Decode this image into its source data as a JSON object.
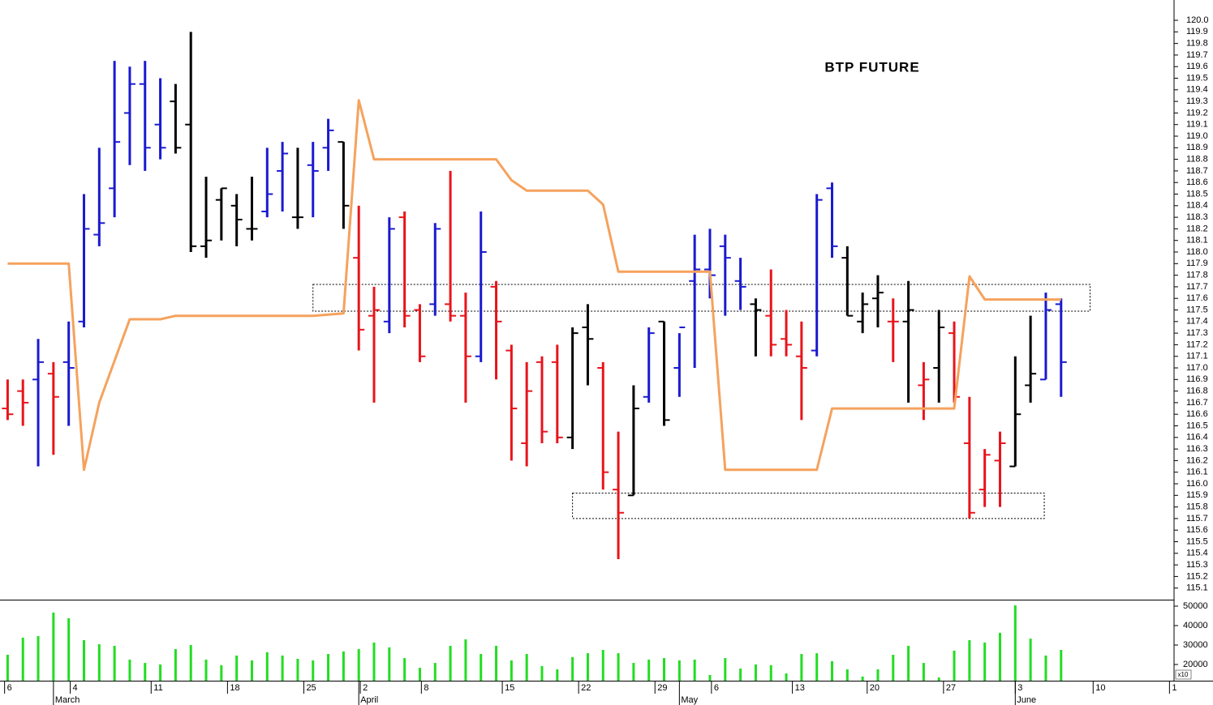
{
  "chart_data": [
    {
      "type": "ohlc",
      "title": "BTP FUTURE",
      "open": [
        116.65,
        116.8,
        116.9,
        116.95,
        117.05,
        117.4,
        118.15,
        118.55,
        119.2,
        119.45,
        119.1,
        119.3,
        119.1,
        118.05,
        118.45,
        118.4,
        118.2,
        118.35,
        118.7,
        118.3,
        118.75,
        118.9,
        118.95,
        117.95,
        117.45,
        117.4,
        118.3,
        117.5,
        117.55,
        117.55,
        117.45,
        117.1,
        117.7,
        117.15,
        116.35,
        117.05,
        117.05,
        116.4,
        117.35,
        117.0,
        115.95,
        115.9,
        116.75,
        117.4,
        117.0,
        117.75,
        117.85,
        118.05,
        117.75,
        117.55,
        117.45,
        117.25,
        117.1,
        117.15,
        118.55,
        117.95,
        117.4,
        117.6,
        117.4,
        117.4,
        116.85,
        117.0,
        117.3,
        116.35,
        115.95,
        116.2,
        116.15,
        116.85,
        116.9,
        117.55
      ],
      "high": [
        116.9,
        116.9,
        117.25,
        117.05,
        117.4,
        118.5,
        118.9,
        119.65,
        119.6,
        119.65,
        119.5,
        119.45,
        119.9,
        118.65,
        118.55,
        118.5,
        118.65,
        118.9,
        118.95,
        118.9,
        118.95,
        119.15,
        118.95,
        118.4,
        117.7,
        118.3,
        118.35,
        117.55,
        118.25,
        118.7,
        117.65,
        118.35,
        117.75,
        117.2,
        117.05,
        117.1,
        117.2,
        117.35,
        117.55,
        117.05,
        116.45,
        116.85,
        117.35,
        117.4,
        117.3,
        118.15,
        118.2,
        118.15,
        117.95,
        117.6,
        117.85,
        117.5,
        117.4,
        118.5,
        118.6,
        118.05,
        117.65,
        117.8,
        117.6,
        117.75,
        117.05,
        117.5,
        117.4,
        116.75,
        116.3,
        116.45,
        117.1,
        117.45,
        117.65,
        117.6
      ],
      "low": [
        116.55,
        116.5,
        116.15,
        116.25,
        116.5,
        117.35,
        118.05,
        118.3,
        118.75,
        118.7,
        118.8,
        118.85,
        118.0,
        117.95,
        118.1,
        118.05,
        118.1,
        118.3,
        118.35,
        118.2,
        118.3,
        118.7,
        118.2,
        117.15,
        116.7,
        117.3,
        117.35,
        117.05,
        117.45,
        117.4,
        116.7,
        117.05,
        116.9,
        116.2,
        116.15,
        116.35,
        116.35,
        116.3,
        116.85,
        115.95,
        115.35,
        115.9,
        116.7,
        116.5,
        116.75,
        117.0,
        117.6,
        117.45,
        117.5,
        117.1,
        117.1,
        117.1,
        116.55,
        117.1,
        117.95,
        117.45,
        117.3,
        117.35,
        117.05,
        116.7,
        116.55,
        116.7,
        116.7,
        115.7,
        115.8,
        115.8,
        116.15,
        116.7,
        116.9,
        116.75
      ],
      "close": [
        116.6,
        116.7,
        117.05,
        116.75,
        117.0,
        118.2,
        118.25,
        118.95,
        119.45,
        118.9,
        118.9,
        118.9,
        118.05,
        118.1,
        118.55,
        118.28,
        118.2,
        118.5,
        118.85,
        118.3,
        118.7,
        119.05,
        118.4,
        117.33,
        117.5,
        118.2,
        117.45,
        117.1,
        118.2,
        117.45,
        117.1,
        118.0,
        117.4,
        116.65,
        116.8,
        116.45,
        116.4,
        117.3,
        117.25,
        116.1,
        115.75,
        116.65,
        117.3,
        116.55,
        117.35,
        117.85,
        117.8,
        117.95,
        117.7,
        117.5,
        117.2,
        117.2,
        117.0,
        118.45,
        118.05,
        117.45,
        117.55,
        117.65,
        117.4,
        117.5,
        116.9,
        117.35,
        116.75,
        115.75,
        116.25,
        116.35,
        116.6,
        116.95,
        117.5,
        117.05
      ],
      "colors": [
        "#e8141b",
        "#e8141b",
        "#1a1ad0",
        "#e8141b",
        "#1a1ad0",
        "#1a1ad0",
        "#1a1ad0",
        "#1a1ad0",
        "#1a1ad0",
        "#1a1ad0",
        "#1a1ad0",
        "#000000",
        "#000000",
        "#000000",
        "#000000",
        "#000000",
        "#000000",
        "#1a1ad0",
        "#1a1ad0",
        "#000000",
        "#1a1ad0",
        "#1a1ad0",
        "#000000",
        "#e8141b",
        "#e8141b",
        "#1a1ad0",
        "#e8141b",
        "#e8141b",
        "#1a1ad0",
        "#e8141b",
        "#e8141b",
        "#1a1ad0",
        "#e8141b",
        "#e8141b",
        "#e8141b",
        "#e8141b",
        "#e8141b",
        "#000000",
        "#000000",
        "#e8141b",
        "#e8141b",
        "#000000",
        "#1a1ad0",
        "#000000",
        "#1a1ad0",
        "#1a1ad0",
        "#1a1ad0",
        "#1a1ad0",
        "#1a1ad0",
        "#000000",
        "#e8141b",
        "#e8141b",
        "#e8141b",
        "#1a1ad0",
        "#1a1ad0",
        "#000000",
        "#000000",
        "#000000",
        "#e8141b",
        "#000000",
        "#e8141b",
        "#000000",
        "#e8141b",
        "#e8141b",
        "#e8141b",
        "#e8141b",
        "#000000",
        "#000000",
        "#1a1ad0",
        "#1a1ad0"
      ],
      "series": [
        {
          "color": "#f5a25d",
          "values": [
            117.9,
            117.9,
            117.9,
            117.9,
            117.9,
            116.12,
            116.7,
            117.06,
            117.42,
            117.42,
            117.42,
            117.45,
            117.45,
            117.45,
            117.45,
            117.45,
            117.45,
            117.45,
            117.45,
            117.45,
            117.45,
            117.46,
            117.47,
            119.31,
            118.8,
            118.8,
            118.8,
            118.8,
            118.8,
            118.8,
            118.8,
            118.8,
            118.8,
            118.62,
            118.53,
            118.53,
            118.53,
            118.53,
            118.53,
            118.41,
            117.83,
            117.83,
            117.83,
            117.83,
            117.83,
            117.83,
            117.83,
            116.12,
            116.12,
            116.12,
            116.12,
            116.12,
            116.12,
            116.12,
            116.65,
            116.65,
            116.65,
            116.65,
            116.65,
            116.65,
            116.65,
            116.65,
            116.65,
            117.79,
            117.59,
            117.59,
            117.59,
            117.59,
            117.59,
            117.59
          ]
        }
      ],
      "zones": [
        {
          "xlim": [
            20,
            70.9
          ],
          "ylim": [
            117.49,
            117.72
          ]
        },
        {
          "xlim": [
            37,
            67.9
          ],
          "ylim": [
            115.7,
            115.92
          ]
        }
      ],
      "xlim": [
        -0.5,
        76.4
      ],
      "ylim": [
        115.0,
        120.175
      ],
      "yticks": [
        115.1,
        115.2,
        115.3,
        115.4,
        115.5,
        115.6,
        115.7,
        115.8,
        115.9,
        {
          "value": 116,
          "label": "116.0"
        },
        116.1,
        116.2,
        116.3,
        116.4,
        116.5,
        116.6,
        116.7,
        116.8,
        116.9,
        {
          "value": 117,
          "label": "117.0"
        },
        117.1,
        117.2,
        117.3,
        117.4,
        117.5,
        117.6,
        117.7,
        117.8,
        117.9,
        {
          "value": 118,
          "label": "118.0"
        },
        118.1,
        118.2,
        118.3,
        118.4,
        118.5,
        118.6,
        118.7,
        118.8,
        118.9,
        {
          "value": 119,
          "label": "119.0"
        },
        119.1,
        119.2,
        119.3,
        119.4,
        119.5,
        119.6,
        119.7,
        119.8,
        119.9,
        {
          "value": 120,
          "label": "120.0"
        }
      ]
    },
    {
      "type": "bar",
      "color": "#22dd22",
      "unit_label": "x10",
      "values": [
        25000,
        33800,
        34600,
        46700,
        43800,
        32500,
        30400,
        29600,
        22500,
        20800,
        20000,
        27900,
        30000,
        22500,
        19600,
        24600,
        22100,
        26300,
        24600,
        22900,
        22100,
        25400,
        26700,
        27900,
        31300,
        28800,
        23300,
        18300,
        20800,
        29600,
        32900,
        25400,
        29600,
        22100,
        25400,
        19200,
        17500,
        23800,
        25800,
        27500,
        25800,
        20800,
        22500,
        23300,
        22100,
        22500,
        14600,
        23300,
        17900,
        20000,
        19600,
        15400,
        25400,
        25800,
        21700,
        17500,
        13800,
        17500,
        25000,
        29600,
        20800,
        13300,
        27100,
        32500,
        31300,
        36300,
        50400,
        33300,
        24600,
        27500
      ],
      "xlim": [
        -0.5,
        76.4
      ],
      "ylim": [
        11670,
        52920
      ],
      "yticks": [
        20000,
        30000,
        40000,
        50000
      ],
      "xticks": [
        {
          "value": -0.2,
          "label": "6"
        },
        {
          "value": 4.1,
          "label": "4"
        },
        {
          "value": 9.4,
          "label": "11"
        },
        {
          "value": 14.4,
          "label": "18"
        },
        {
          "value": 19.4,
          "label": "25"
        },
        {
          "value": 23.1,
          "label": "2"
        },
        {
          "value": 27.1,
          "label": "8"
        },
        {
          "value": 32.4,
          "label": "15"
        },
        {
          "value": 37.4,
          "label": "22"
        },
        {
          "value": 42.4,
          "label": "29"
        },
        {
          "value": 46.1,
          "label": "6"
        },
        {
          "value": 51.4,
          "label": "13"
        },
        {
          "value": 56.3,
          "label": "20"
        },
        {
          "value": 61.3,
          "label": "27"
        },
        {
          "value": 66.0,
          "label": "3"
        },
        {
          "value": 71.1,
          "label": "10"
        },
        {
          "value": 76.1,
          "label": "1"
        }
      ],
      "month_ticks": [
        {
          "value": 3.0,
          "label": "March"
        },
        {
          "value": 23.0,
          "label": "April"
        },
        {
          "value": 44.0,
          "label": "May"
        },
        {
          "value": 66.0,
          "label": "June"
        }
      ]
    }
  ]
}
